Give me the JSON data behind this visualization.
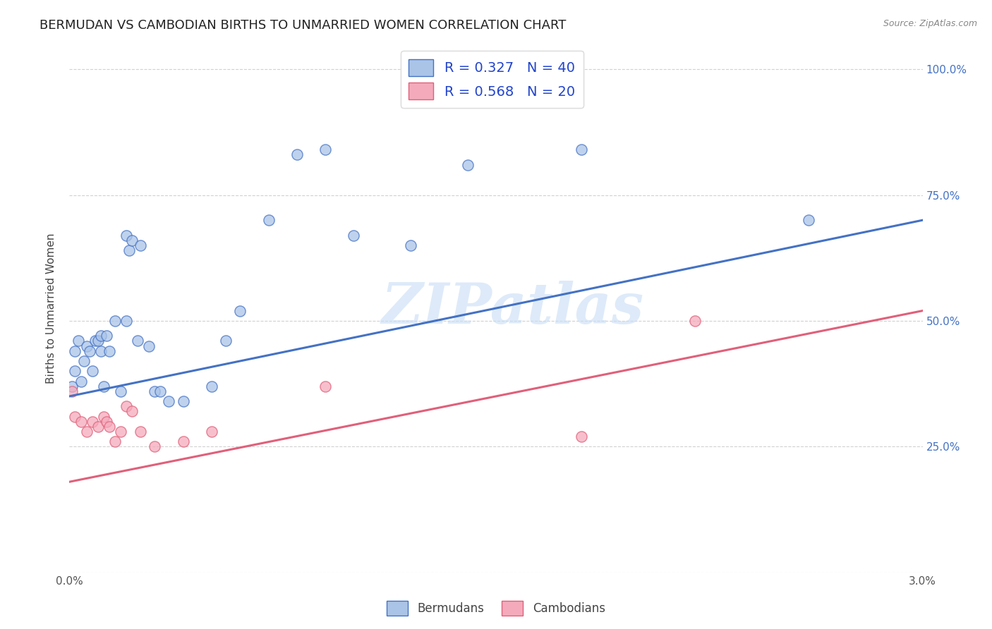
{
  "title": "BERMUDAN VS CAMBODIAN BIRTHS TO UNMARRIED WOMEN CORRELATION CHART",
  "source": "Source: ZipAtlas.com",
  "ylabel": "Births to Unmarried Women",
  "xlabel_bermudans": "Bermudans",
  "xlabel_cambodians": "Cambodians",
  "xlim": [
    0.0,
    0.03
  ],
  "ylim": [
    0.0,
    1.05
  ],
  "xticks": [
    0.0,
    0.005,
    0.01,
    0.015,
    0.02,
    0.025,
    0.03
  ],
  "xticklabels": [
    "0.0%",
    "",
    "",
    "",
    "",
    "",
    "3.0%"
  ],
  "yticks": [
    0.0,
    0.25,
    0.5,
    0.75,
    1.0
  ],
  "yticklabels": [
    "",
    "25.0%",
    "50.0%",
    "75.0%",
    "100.0%"
  ],
  "bermudans_R": 0.327,
  "bermudans_N": 40,
  "cambodians_R": 0.568,
  "cambodians_N": 20,
  "bermudan_scatter_x": [
    0.0001,
    0.0002,
    0.0002,
    0.0003,
    0.0004,
    0.0005,
    0.0006,
    0.0007,
    0.0008,
    0.0009,
    0.001,
    0.0011,
    0.0011,
    0.0012,
    0.0013,
    0.0014,
    0.0016,
    0.0018,
    0.002,
    0.002,
    0.0021,
    0.0022,
    0.0024,
    0.0025,
    0.0028,
    0.003,
    0.0032,
    0.0035,
    0.004,
    0.005,
    0.0055,
    0.006,
    0.007,
    0.008,
    0.009,
    0.01,
    0.012,
    0.014,
    0.018,
    0.026
  ],
  "bermudan_scatter_y": [
    0.37,
    0.4,
    0.44,
    0.46,
    0.38,
    0.42,
    0.45,
    0.44,
    0.4,
    0.46,
    0.46,
    0.44,
    0.47,
    0.37,
    0.47,
    0.44,
    0.5,
    0.36,
    0.5,
    0.67,
    0.64,
    0.66,
    0.46,
    0.65,
    0.45,
    0.36,
    0.36,
    0.34,
    0.34,
    0.37,
    0.46,
    0.52,
    0.7,
    0.83,
    0.84,
    0.67,
    0.65,
    0.81,
    0.84,
    0.7
  ],
  "cambodian_scatter_x": [
    0.0001,
    0.0002,
    0.0004,
    0.0006,
    0.0008,
    0.001,
    0.0012,
    0.0013,
    0.0014,
    0.0016,
    0.0018,
    0.002,
    0.0022,
    0.0025,
    0.003,
    0.004,
    0.005,
    0.009,
    0.018,
    0.022
  ],
  "cambodian_scatter_y": [
    0.36,
    0.31,
    0.3,
    0.28,
    0.3,
    0.29,
    0.31,
    0.3,
    0.29,
    0.26,
    0.28,
    0.33,
    0.32,
    0.28,
    0.25,
    0.26,
    0.28,
    0.37,
    0.27,
    0.5
  ],
  "bermudan_line_x": [
    0.0,
    0.03
  ],
  "bermudan_line_y": [
    0.35,
    0.7
  ],
  "cambodian_line_x": [
    0.0,
    0.03
  ],
  "cambodian_line_y": [
    0.18,
    0.52
  ],
  "bermudan_color": "#aac4e8",
  "cambodian_color": "#f5aabb",
  "bermudan_line_color": "#4472c4",
  "cambodian_line_color": "#e0607a",
  "legend_text_color": "#2244cc",
  "watermark_text": "ZIPatlas",
  "background_color": "#ffffff",
  "grid_color": "#cccccc"
}
